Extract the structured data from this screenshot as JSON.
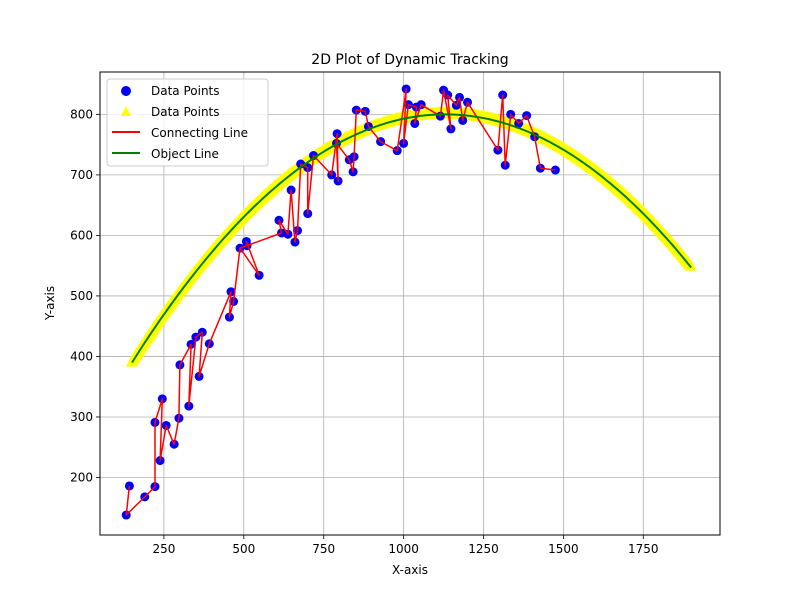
{
  "chart_data": {
    "type": "scatter",
    "title": "2D Plot of Dynamic Tracking",
    "xlabel": "X-axis",
    "ylabel": "Y-axis",
    "xlim": [
      50,
      1990
    ],
    "ylim": [
      105,
      870
    ],
    "xticks": [
      250,
      500,
      750,
      1000,
      1250,
      1500,
      1750
    ],
    "yticks": [
      200,
      300,
      400,
      500,
      600,
      700,
      800
    ],
    "grid": true,
    "legend_position": "upper left",
    "legend": [
      {
        "label": "Data Points",
        "kind": "circle-marker",
        "color": "#0000ff"
      },
      {
        "label": "Data Points",
        "kind": "triangle-marker",
        "color": "#ffff00"
      },
      {
        "label": "Connecting Line",
        "kind": "line",
        "color": "#ff0000"
      },
      {
        "label": "Object Line",
        "kind": "line",
        "color": "#008000"
      }
    ],
    "series": [
      {
        "name": "Data Points",
        "role": "observed",
        "marker": "circle",
        "color": "#0000ff",
        "points": [
          [
            132,
            138
          ],
          [
            142,
            186
          ],
          [
            190,
            168
          ],
          [
            222,
            185
          ],
          [
            222,
            291
          ],
          [
            238,
            228
          ],
          [
            245,
            330
          ],
          [
            257,
            286
          ],
          [
            282,
            255
          ],
          [
            297,
            298
          ],
          [
            300,
            386
          ],
          [
            328,
            318
          ],
          [
            335,
            420
          ],
          [
            350,
            432
          ],
          [
            360,
            367
          ],
          [
            370,
            440
          ],
          [
            392,
            421
          ],
          [
            455,
            465
          ],
          [
            460,
            507
          ],
          [
            468,
            491
          ],
          [
            488,
            579
          ],
          [
            508,
            590
          ],
          [
            510,
            583
          ],
          [
            548,
            534
          ],
          [
            610,
            625
          ],
          [
            618,
            604
          ],
          [
            638,
            602
          ],
          [
            648,
            675
          ],
          [
            660,
            589
          ],
          [
            668,
            608
          ],
          [
            678,
            718
          ],
          [
            700,
            636
          ],
          [
            700,
            712
          ],
          [
            718,
            732
          ],
          [
            775,
            700
          ],
          [
            790,
            752
          ],
          [
            795,
            690
          ],
          [
            792,
            768
          ],
          [
            830,
            725
          ],
          [
            842,
            705
          ],
          [
            845,
            730
          ],
          [
            852,
            807
          ],
          [
            880,
            805
          ],
          [
            890,
            780
          ],
          [
            928,
            755
          ],
          [
            980,
            740
          ],
          [
            1000,
            752
          ],
          [
            1008,
            842
          ],
          [
            1015,
            816
          ],
          [
            1035,
            785
          ],
          [
            1040,
            812
          ],
          [
            1055,
            816
          ],
          [
            1115,
            797
          ],
          [
            1125,
            840
          ],
          [
            1138,
            832
          ],
          [
            1148,
            776
          ],
          [
            1165,
            815
          ],
          [
            1175,
            828
          ],
          [
            1185,
            790
          ],
          [
            1200,
            820
          ],
          [
            1295,
            741
          ],
          [
            1310,
            832
          ],
          [
            1318,
            716
          ],
          [
            1335,
            800
          ],
          [
            1360,
            785
          ],
          [
            1385,
            798
          ],
          [
            1410,
            763
          ],
          [
            1428,
            711
          ],
          [
            1475,
            708
          ]
        ]
      },
      {
        "name": "Data Points",
        "role": "true-path",
        "marker": "triangle",
        "color": "#ffff00",
        "x": [
          150,
          1900
        ]
      },
      {
        "name": "Connecting Line",
        "color": "#ff0000",
        "order": "temporal",
        "points": [
          [
            142,
            186
          ],
          [
            132,
            138
          ],
          [
            190,
            168
          ],
          [
            222,
            185
          ],
          [
            222,
            291
          ],
          [
            245,
            330
          ],
          [
            238,
            228
          ],
          [
            257,
            286
          ],
          [
            282,
            255
          ],
          [
            297,
            298
          ],
          [
            300,
            386
          ],
          [
            335,
            420
          ],
          [
            328,
            318
          ],
          [
            350,
            432
          ],
          [
            370,
            440
          ],
          [
            360,
            367
          ],
          [
            392,
            421
          ],
          [
            460,
            507
          ],
          [
            455,
            465
          ],
          [
            468,
            491
          ],
          [
            488,
            579
          ],
          [
            510,
            583
          ],
          [
            508,
            590
          ],
          [
            548,
            534
          ],
          [
            488,
            579
          ],
          [
            618,
            604
          ],
          [
            610,
            625
          ],
          [
            638,
            602
          ],
          [
            648,
            675
          ],
          [
            660,
            589
          ],
          [
            668,
            608
          ],
          [
            678,
            718
          ],
          [
            700,
            712
          ],
          [
            700,
            636
          ],
          [
            718,
            732
          ],
          [
            775,
            700
          ],
          [
            792,
            768
          ],
          [
            795,
            690
          ],
          [
            790,
            752
          ],
          [
            830,
            725
          ],
          [
            842,
            705
          ],
          [
            845,
            730
          ],
          [
            852,
            807
          ],
          [
            880,
            805
          ],
          [
            890,
            780
          ],
          [
            928,
            755
          ],
          [
            980,
            740
          ],
          [
            1008,
            842
          ],
          [
            1000,
            752
          ],
          [
            1015,
            816
          ],
          [
            1040,
            812
          ],
          [
            1035,
            785
          ],
          [
            1055,
            816
          ],
          [
            1115,
            797
          ],
          [
            1125,
            840
          ],
          [
            1148,
            776
          ],
          [
            1138,
            832
          ],
          [
            1165,
            815
          ],
          [
            1175,
            828
          ],
          [
            1185,
            790
          ],
          [
            1200,
            820
          ],
          [
            1295,
            741
          ],
          [
            1310,
            832
          ],
          [
            1318,
            716
          ],
          [
            1335,
            800
          ],
          [
            1360,
            785
          ],
          [
            1385,
            798
          ],
          [
            1410,
            763
          ],
          [
            1428,
            711
          ],
          [
            1475,
            708
          ]
        ]
      },
      {
        "name": "Object Line",
        "color": "#008000",
        "x_range": [
          150,
          1900
        ],
        "model": "parabola",
        "vertex": [
          1130,
          800
        ],
        "a": -0.000427
      }
    ]
  }
}
